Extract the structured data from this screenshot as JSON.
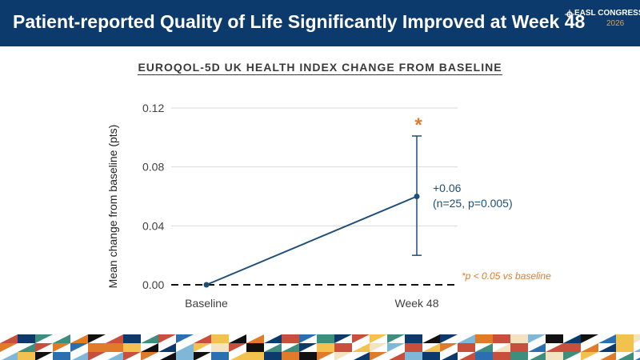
{
  "header": {
    "title": "Patient-reported Quality of Life Significantly Improved at Week 48",
    "logo_text": "EASL CONGRESS",
    "logo_year": "2026"
  },
  "colors": {
    "header_bg": "#0d3a6c",
    "line": "#1f4e79",
    "accent": "#e07b2a",
    "grid": "#d9d9d9"
  },
  "chart_data": {
    "type": "line",
    "title": "EUROQOL-5D UK HEALTH INDEX CHANGE FROM BASELINE",
    "ylabel": "Mean change from baseline (pts)",
    "xlabel": "",
    "categories": [
      "Baseline",
      "Week 48"
    ],
    "series": [
      {
        "values": [
          0.0,
          0.06
        ],
        "error_low": [
          null,
          0.02
        ],
        "error_high": [
          null,
          0.101
        ]
      }
    ],
    "ylim": [
      0,
      0.12
    ],
    "yticks": [
      "0.00",
      "0.04",
      "0.08",
      "0.12"
    ],
    "grid": true,
    "reference_line": {
      "y": 0.0,
      "style": "dashed"
    },
    "annotations": {
      "value_label": "+0.06",
      "stats_label": "(n=25, p=0.005)",
      "significance_marker": "*",
      "footnote": "*p < 0.05 vs baseline"
    }
  }
}
